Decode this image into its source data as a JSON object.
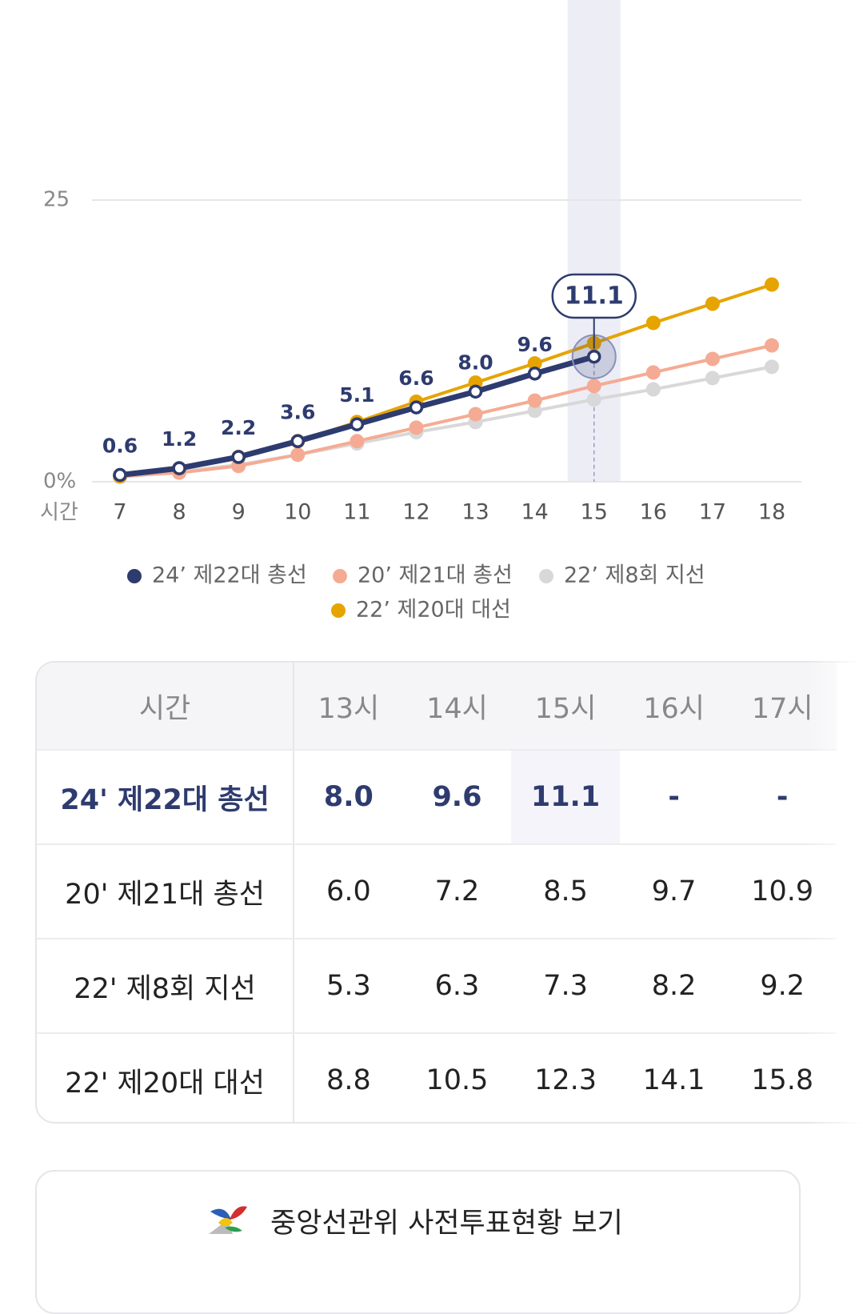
{
  "chart_data": {
    "type": "line",
    "categories": [
      "7",
      "8",
      "9",
      "10",
      "11",
      "12",
      "13",
      "14",
      "15",
      "16",
      "17",
      "18"
    ],
    "x_label": "시간",
    "ylim": [
      0,
      25
    ],
    "yticks": [
      {
        "value": 0,
        "label": "0%"
      },
      25
    ],
    "grid": true,
    "highlight_index": 8,
    "series": [
      {
        "name": "24’ 제22대 총선",
        "color": "#2e3b6f",
        "values": [
          0.6,
          1.2,
          2.2,
          3.6,
          5.1,
          6.6,
          8.0,
          9.6,
          11.1,
          null,
          null,
          null
        ],
        "value_labels": [
          "0.6",
          "1.2",
          "2.2",
          "3.6",
          "5.1",
          "6.6",
          "8.0",
          "9.6",
          "11.1",
          null,
          null,
          null
        ]
      },
      {
        "name": "20’ 제21대 총선",
        "color": "#f5ab93",
        "values": [
          0.5,
          0.8,
          1.4,
          2.4,
          3.6,
          4.8,
          6.0,
          7.2,
          8.5,
          9.7,
          10.9,
          12.1
        ]
      },
      {
        "name": "22’ 제8회 지선",
        "color": "#d8d8d8",
        "values": [
          0.4,
          0.9,
          1.5,
          2.4,
          3.4,
          4.4,
          5.3,
          6.3,
          7.3,
          8.2,
          9.2,
          10.2
        ]
      },
      {
        "name": "22’ 제20대 대선",
        "color": "#e6a400",
        "values": [
          0.5,
          1.2,
          2.2,
          3.6,
          5.3,
          7.1,
          8.8,
          10.5,
          12.3,
          14.1,
          15.8,
          17.5
        ]
      }
    ]
  },
  "table": {
    "header": [
      "시간",
      "13시",
      "14시",
      "15시",
      "16시",
      "17시"
    ],
    "rows": [
      [
        "24' 제22대 총선",
        "8.0",
        "9.6",
        "11.1",
        "-",
        "-"
      ],
      [
        "20' 제21대 총선",
        "6.0",
        "7.2",
        "8.5",
        "9.7",
        "10.9"
      ],
      [
        "22' 제8회 지선",
        "5.3",
        "6.3",
        "7.3",
        "8.2",
        "9.2"
      ],
      [
        "22' 제20대 대선",
        "8.8",
        "10.5",
        "12.3",
        "14.1",
        "15.8"
      ]
    ]
  },
  "button": {
    "label": "중앙선관위 사전투표현황 보기"
  }
}
